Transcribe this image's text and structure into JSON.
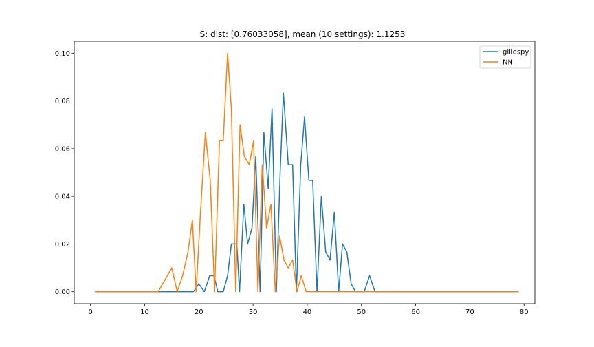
{
  "chart_data": {
    "type": "line",
    "title": "S: dist: [0.76033058], mean (10 settings): 1.1253",
    "xlabel": "",
    "ylabel": "",
    "xlim": [
      -3,
      82
    ],
    "ylim": [
      -0.005,
      0.105
    ],
    "xticks": [
      0,
      10,
      20,
      30,
      40,
      50,
      60,
      70,
      80
    ],
    "yticks": [
      0.0,
      0.02,
      0.04,
      0.06,
      0.08,
      0.1
    ],
    "ytick_labels": [
      "0.00",
      "0.02",
      "0.04",
      "0.06",
      "0.08",
      "0.10"
    ],
    "legend_position": "top-right",
    "grid": false,
    "series": [
      {
        "name": "gillespy",
        "color": "#1f77b4",
        "points": [
          [
            0.8,
            0
          ],
          [
            13,
            0
          ],
          [
            19,
            0
          ],
          [
            20,
            0.0033
          ],
          [
            21,
            0
          ],
          [
            22,
            0.0067
          ],
          [
            22.8,
            0.0067
          ],
          [
            23.5,
            0
          ],
          [
            24.5,
            0
          ],
          [
            25.3,
            0.0067
          ],
          [
            26,
            0.02
          ],
          [
            27,
            0.02
          ],
          [
            27.5,
            0
          ],
          [
            28.3,
            0.0367
          ],
          [
            29,
            0.02
          ],
          [
            29.8,
            0.0267
          ],
          [
            30.5,
            0.0567
          ],
          [
            31.3,
            0
          ],
          [
            32,
            0.0667
          ],
          [
            32.8,
            0.0433
          ],
          [
            33.5,
            0.0767
          ],
          [
            34.3,
            0
          ],
          [
            35,
            0.05
          ],
          [
            35.6,
            0.0833
          ],
          [
            36.5,
            0.0533
          ],
          [
            37.3,
            0.0533
          ],
          [
            38,
            0
          ],
          [
            38.8,
            0.0533
          ],
          [
            39.5,
            0.0733
          ],
          [
            40.3,
            0.0467
          ],
          [
            41,
            0.0467
          ],
          [
            41.8,
            0
          ],
          [
            42.6,
            0.04
          ],
          [
            43.4,
            0.0167
          ],
          [
            44.2,
            0.0133
          ],
          [
            45,
            0.0333
          ],
          [
            45.8,
            0
          ],
          [
            46.5,
            0.02
          ],
          [
            47.3,
            0.0167
          ],
          [
            48.1,
            0.0033
          ],
          [
            48.9,
            0
          ],
          [
            50.5,
            0
          ],
          [
            51.5,
            0.0067
          ],
          [
            52.5,
            0
          ],
          [
            79,
            0
          ]
        ]
      },
      {
        "name": "NN",
        "color": "#ff7f0e",
        "points": [
          [
            0.8,
            0
          ],
          [
            12.5,
            0
          ],
          [
            15,
            0.01
          ],
          [
            16,
            0
          ],
          [
            17,
            0.0067
          ],
          [
            18,
            0.0167
          ],
          [
            18.8,
            0.03
          ],
          [
            19.5,
            0
          ],
          [
            20.3,
            0.0333
          ],
          [
            21.2,
            0.0667
          ],
          [
            22.1,
            0.0467
          ],
          [
            22.9,
            0
          ],
          [
            23.8,
            0.0633
          ],
          [
            24.5,
            0.0633
          ],
          [
            25.3,
            0.1
          ],
          [
            26,
            0.0767
          ],
          [
            26.8,
            0
          ],
          [
            27.6,
            0.07
          ],
          [
            28.4,
            0.0567
          ],
          [
            29.3,
            0.0533
          ],
          [
            30.1,
            0.0633
          ],
          [
            30.9,
            0
          ],
          [
            31.7,
            0.0533
          ],
          [
            32.5,
            0.0267
          ],
          [
            33.3,
            0.0367
          ],
          [
            34.1,
            0
          ],
          [
            34.9,
            0.0233
          ],
          [
            35.7,
            0.0133
          ],
          [
            36.5,
            0.01
          ],
          [
            37.3,
            0.0133
          ],
          [
            38.1,
            0
          ],
          [
            38.9,
            0.0067
          ],
          [
            39.8,
            0
          ],
          [
            79,
            0
          ]
        ]
      }
    ]
  }
}
